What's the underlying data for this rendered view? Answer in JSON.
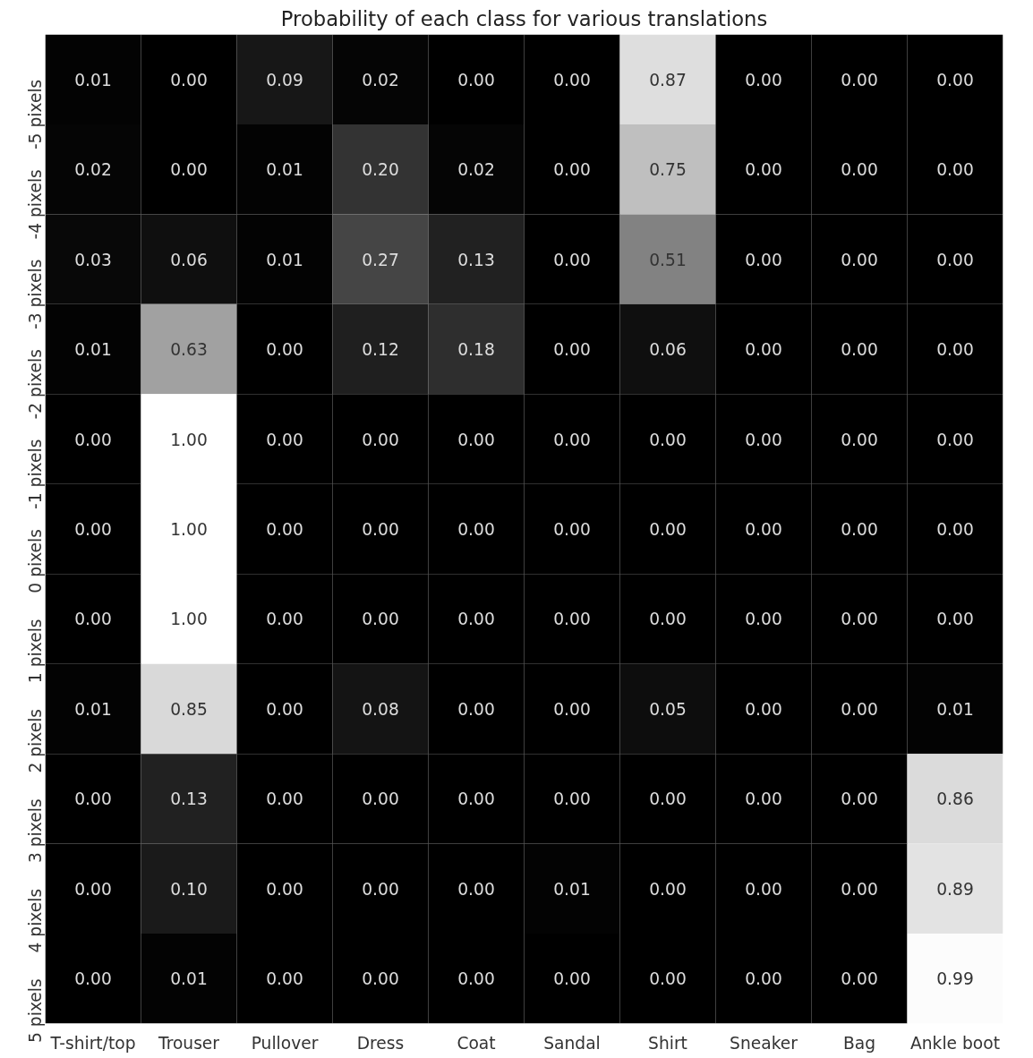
{
  "chart_data": {
    "type": "heatmap",
    "title": "Probability of each class for various translations",
    "categories": [
      "T-shirt/top",
      "Trouser",
      "Pullover",
      "Dress",
      "Coat",
      "Sandal",
      "Shirt",
      "Sneaker",
      "Bag",
      "Ankle boot"
    ],
    "y_categories": [
      "-5 pixels",
      "-4 pixels",
      "-3 pixels",
      "-2 pixels",
      "-1 pixels",
      "0 pixels",
      "1 pixels",
      "2 pixels",
      "3 pixels",
      "4 pixels",
      "5 pixels"
    ],
    "cells": [
      [
        0.01,
        0.0,
        0.09,
        0.02,
        0.0,
        0.0,
        0.87,
        0.0,
        0.0,
        0.0
      ],
      [
        0.02,
        0.0,
        0.01,
        0.2,
        0.02,
        0.0,
        0.75,
        0.0,
        0.0,
        0.0
      ],
      [
        0.03,
        0.06,
        0.01,
        0.27,
        0.13,
        0.0,
        0.51,
        0.0,
        0.0,
        0.0
      ],
      [
        0.01,
        0.63,
        0.0,
        0.12,
        0.18,
        0.0,
        0.06,
        0.0,
        0.0,
        0.0
      ],
      [
        0.0,
        1.0,
        0.0,
        0.0,
        0.0,
        0.0,
        0.0,
        0.0,
        0.0,
        0.0
      ],
      [
        0.0,
        1.0,
        0.0,
        0.0,
        0.0,
        0.0,
        0.0,
        0.0,
        0.0,
        0.0
      ],
      [
        0.0,
        1.0,
        0.0,
        0.0,
        0.0,
        0.0,
        0.0,
        0.0,
        0.0,
        0.0
      ],
      [
        0.01,
        0.85,
        0.0,
        0.08,
        0.0,
        0.0,
        0.05,
        0.0,
        0.0,
        0.01
      ],
      [
        0.0,
        0.13,
        0.0,
        0.0,
        0.0,
        0.0,
        0.0,
        0.0,
        0.0,
        0.86
      ],
      [
        0.0,
        0.1,
        0.0,
        0.0,
        0.0,
        0.01,
        0.0,
        0.0,
        0.0,
        0.89
      ],
      [
        0.0,
        0.01,
        0.0,
        0.0,
        0.0,
        0.0,
        0.0,
        0.0,
        0.0,
        0.99
      ]
    ],
    "cell_labels": [
      [
        "0.01",
        "0.00",
        "0.09",
        "0.02",
        "0.00",
        "0.00",
        "0.87",
        "0.00",
        "0.00",
        "0.00"
      ],
      [
        "0.02",
        "0.00",
        "0.01",
        "0.20",
        "0.02",
        "0.00",
        "0.75",
        "0.00",
        "0.00",
        "0.00"
      ],
      [
        "0.03",
        "0.06",
        "0.01",
        "0.27",
        "0.13",
        "0.00",
        "0.51",
        "0.00",
        "0.00",
        "0.00"
      ],
      [
        "0.01",
        "0.63",
        "0.00",
        "0.12",
        "0.18",
        "0.00",
        "0.06",
        "0.00",
        "0.00",
        "0.00"
      ],
      [
        "0.00",
        "1.00",
        "0.00",
        "0.00",
        "0.00",
        "0.00",
        "0.00",
        "0.00",
        "0.00",
        "0.00"
      ],
      [
        "0.00",
        "1.00",
        "0.00",
        "0.00",
        "0.00",
        "0.00",
        "0.00",
        "0.00",
        "0.00",
        "0.00"
      ],
      [
        "0.00",
        "1.00",
        "0.00",
        "0.00",
        "0.00",
        "0.00",
        "0.00",
        "0.00",
        "0.00",
        "0.00"
      ],
      [
        "0.01",
        "0.85",
        "0.00",
        "0.08",
        "0.00",
        "0.00",
        "0.05",
        "0.00",
        "0.00",
        "0.01"
      ],
      [
        "0.00",
        "0.13",
        "0.00",
        "0.00",
        "0.00",
        "0.00",
        "0.00",
        "0.00",
        "0.00",
        "0.86"
      ],
      [
        "0.00",
        "0.10",
        "0.00",
        "0.00",
        "0.00",
        "0.01",
        "0.00",
        "0.00",
        "0.00",
        "0.89"
      ],
      [
        "0.00",
        "0.01",
        "0.00",
        "0.00",
        "0.00",
        "0.00",
        "0.00",
        "0.00",
        "0.00",
        "0.99"
      ]
    ]
  }
}
